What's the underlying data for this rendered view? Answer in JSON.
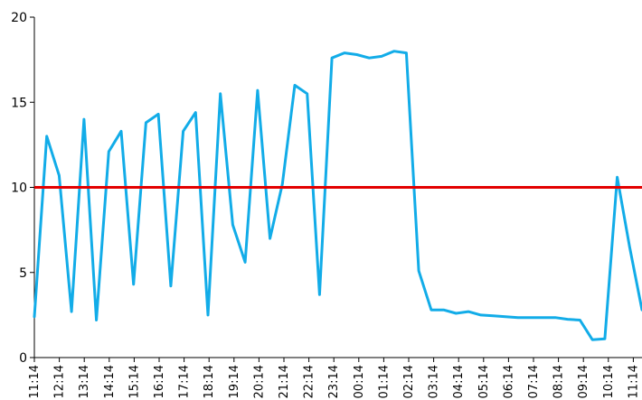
{
  "chart_data": {
    "type": "line",
    "title": "",
    "xlabel": "",
    "ylabel": "",
    "ylim": [
      0,
      20
    ],
    "yticks": [
      0,
      5,
      10,
      15,
      20
    ],
    "grid": false,
    "x_tick_labels": [
      "11:14",
      "12:14",
      "13:14",
      "14:14",
      "15:14",
      "16:14",
      "17:14",
      "18:14",
      "19:14",
      "20:14",
      "21:14",
      "22:14",
      "23:14",
      "00:14",
      "01:14",
      "02:14",
      "03:14",
      "04:14",
      "05:14",
      "06:14",
      "07:14",
      "08:14",
      "09:14",
      "10:14",
      "11:14"
    ],
    "series": [
      {
        "color": "#12ace8",
        "values": [
          2.4,
          13.0,
          10.7,
          2.7,
          14.0,
          2.2,
          12.1,
          13.3,
          4.3,
          13.8,
          14.3,
          4.2,
          13.3,
          14.4,
          2.5,
          15.5,
          7.8,
          5.6,
          15.7,
          7.0,
          10.2,
          16.0,
          15.5,
          3.7,
          17.6,
          17.9,
          17.8,
          17.6,
          17.7,
          18.0,
          17.9,
          5.1,
          2.8,
          2.8,
          2.6,
          2.7,
          2.5,
          2.45,
          2.4,
          2.35,
          2.35,
          2.35,
          2.35,
          2.25,
          2.2,
          1.05,
          1.1,
          10.6,
          6.5,
          2.8
        ]
      }
    ],
    "reference_line": {
      "value": 10,
      "color": "#e30000"
    }
  }
}
